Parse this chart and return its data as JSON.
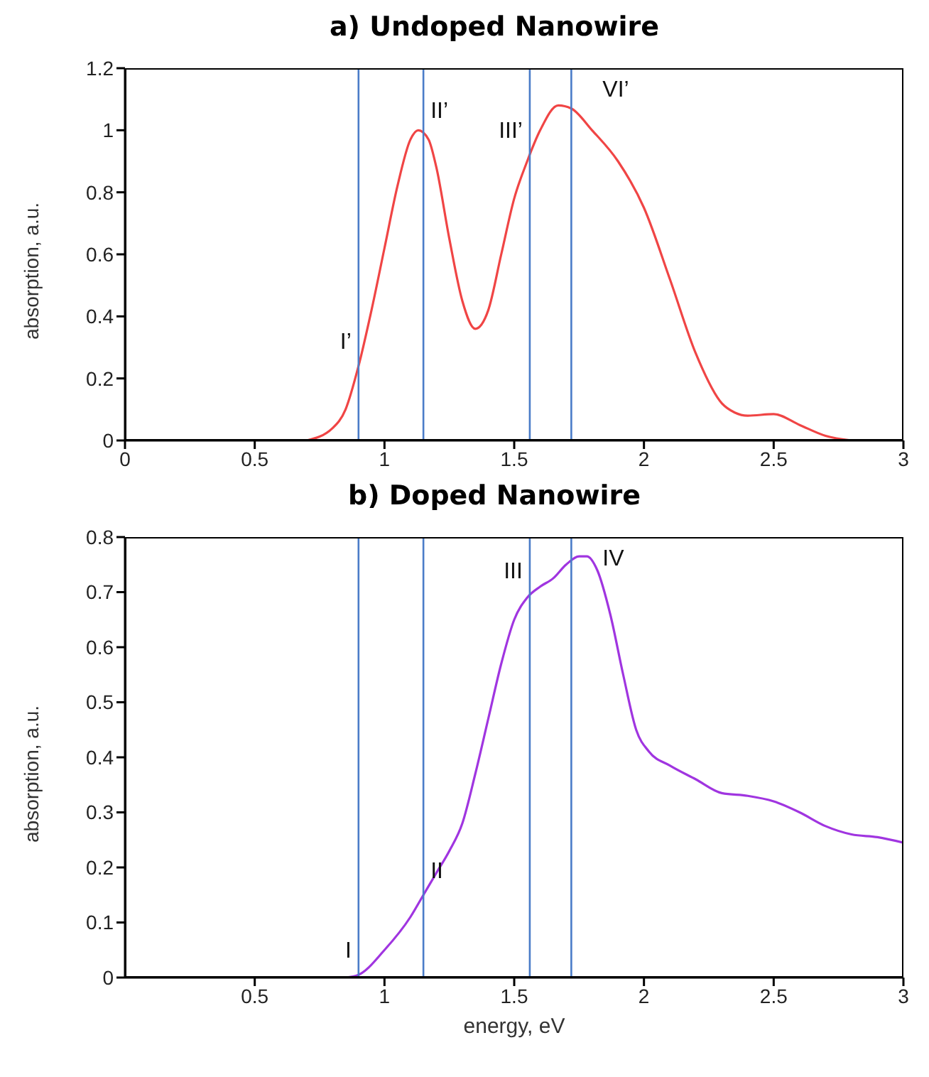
{
  "chart_data": [
    {
      "type": "line",
      "title": "a) Undoped Nanowire",
      "ylabel": "absorption, a.u.",
      "x": [
        0.7,
        0.8,
        0.85,
        0.9,
        0.95,
        1.0,
        1.05,
        1.1,
        1.13,
        1.17,
        1.2,
        1.25,
        1.3,
        1.35,
        1.4,
        1.45,
        1.5,
        1.55,
        1.6,
        1.67,
        1.72,
        1.8,
        1.9,
        2.0,
        2.1,
        2.2,
        2.3,
        2.35,
        2.4,
        2.5,
        2.6,
        2.7,
        2.8
      ],
      "series": [
        {
          "color": "#f04545",
          "values": [
            0,
            0.04,
            0.1,
            0.24,
            0.42,
            0.62,
            0.82,
            0.97,
            1.0,
            0.97,
            0.88,
            0.65,
            0.45,
            0.36,
            0.42,
            0.6,
            0.78,
            0.9,
            1.0,
            1.08,
            1.07,
            1.0,
            0.9,
            0.75,
            0.52,
            0.28,
            0.12,
            0.09,
            0.08,
            0.085,
            0.05,
            0.015,
            0
          ]
        }
      ],
      "xlim": [
        0,
        3
      ],
      "xticks": [
        0,
        0.5,
        1,
        1.5,
        2,
        2.5,
        3
      ],
      "ylim": [
        0,
        1.2
      ],
      "yticks": [
        0,
        0.2,
        0.4,
        0.6,
        0.8,
        1,
        1.2
      ],
      "grid": false,
      "legend": false,
      "marker": "none",
      "line_style": "solid",
      "ref_lines": [
        {
          "axis": "x",
          "value": 0.9,
          "color": "#4a7cc8",
          "label": "I’"
        },
        {
          "axis": "x",
          "value": 1.15,
          "color": "#4a7cc8",
          "label": "II’"
        },
        {
          "axis": "x",
          "value": 1.56,
          "color": "#4a7cc8",
          "label": "III’"
        },
        {
          "axis": "x",
          "value": 1.72,
          "color": "#4a7cc8",
          "label": "VI’"
        }
      ]
    },
    {
      "type": "line",
      "title": "b) Doped Nanowire",
      "xlabel": "energy, eV",
      "ylabel": "absorption, a.u.",
      "x": [
        0.85,
        0.9,
        1.0,
        1.1,
        1.15,
        1.2,
        1.25,
        1.3,
        1.35,
        1.4,
        1.45,
        1.5,
        1.55,
        1.6,
        1.65,
        1.7,
        1.75,
        1.78,
        1.82,
        1.87,
        1.92,
        1.97,
        2.02,
        2.1,
        2.2,
        2.3,
        2.4,
        2.5,
        2.6,
        2.7,
        2.8,
        2.9,
        3.0
      ],
      "series": [
        {
          "color": "#a035e0",
          "values": [
            0,
            0.005,
            0.05,
            0.11,
            0.15,
            0.19,
            0.23,
            0.28,
            0.37,
            0.47,
            0.57,
            0.65,
            0.69,
            0.71,
            0.725,
            0.75,
            0.765,
            0.765,
            0.74,
            0.66,
            0.55,
            0.45,
            0.41,
            0.385,
            0.36,
            0.335,
            0.33,
            0.32,
            0.3,
            0.275,
            0.26,
            0.255,
            0.245
          ]
        }
      ],
      "xlim": [
        0,
        3
      ],
      "xticks": [
        0.5,
        1,
        1.5,
        2,
        2.5,
        3
      ],
      "ylim": [
        0,
        0.8
      ],
      "yticks": [
        0,
        0.1,
        0.2,
        0.3,
        0.4,
        0.5,
        0.6,
        0.7,
        0.8
      ],
      "grid": false,
      "legend": false,
      "marker": "none",
      "line_style": "solid",
      "ref_lines": [
        {
          "axis": "x",
          "value": 0.9,
          "color": "#4a7cc8",
          "label": "I"
        },
        {
          "axis": "x",
          "value": 1.15,
          "color": "#4a7cc8",
          "label": "II"
        },
        {
          "axis": "x",
          "value": 1.56,
          "color": "#4a7cc8",
          "label": "III"
        },
        {
          "axis": "x",
          "value": 1.72,
          "color": "#4a7cc8",
          "label": "IV"
        }
      ]
    }
  ]
}
